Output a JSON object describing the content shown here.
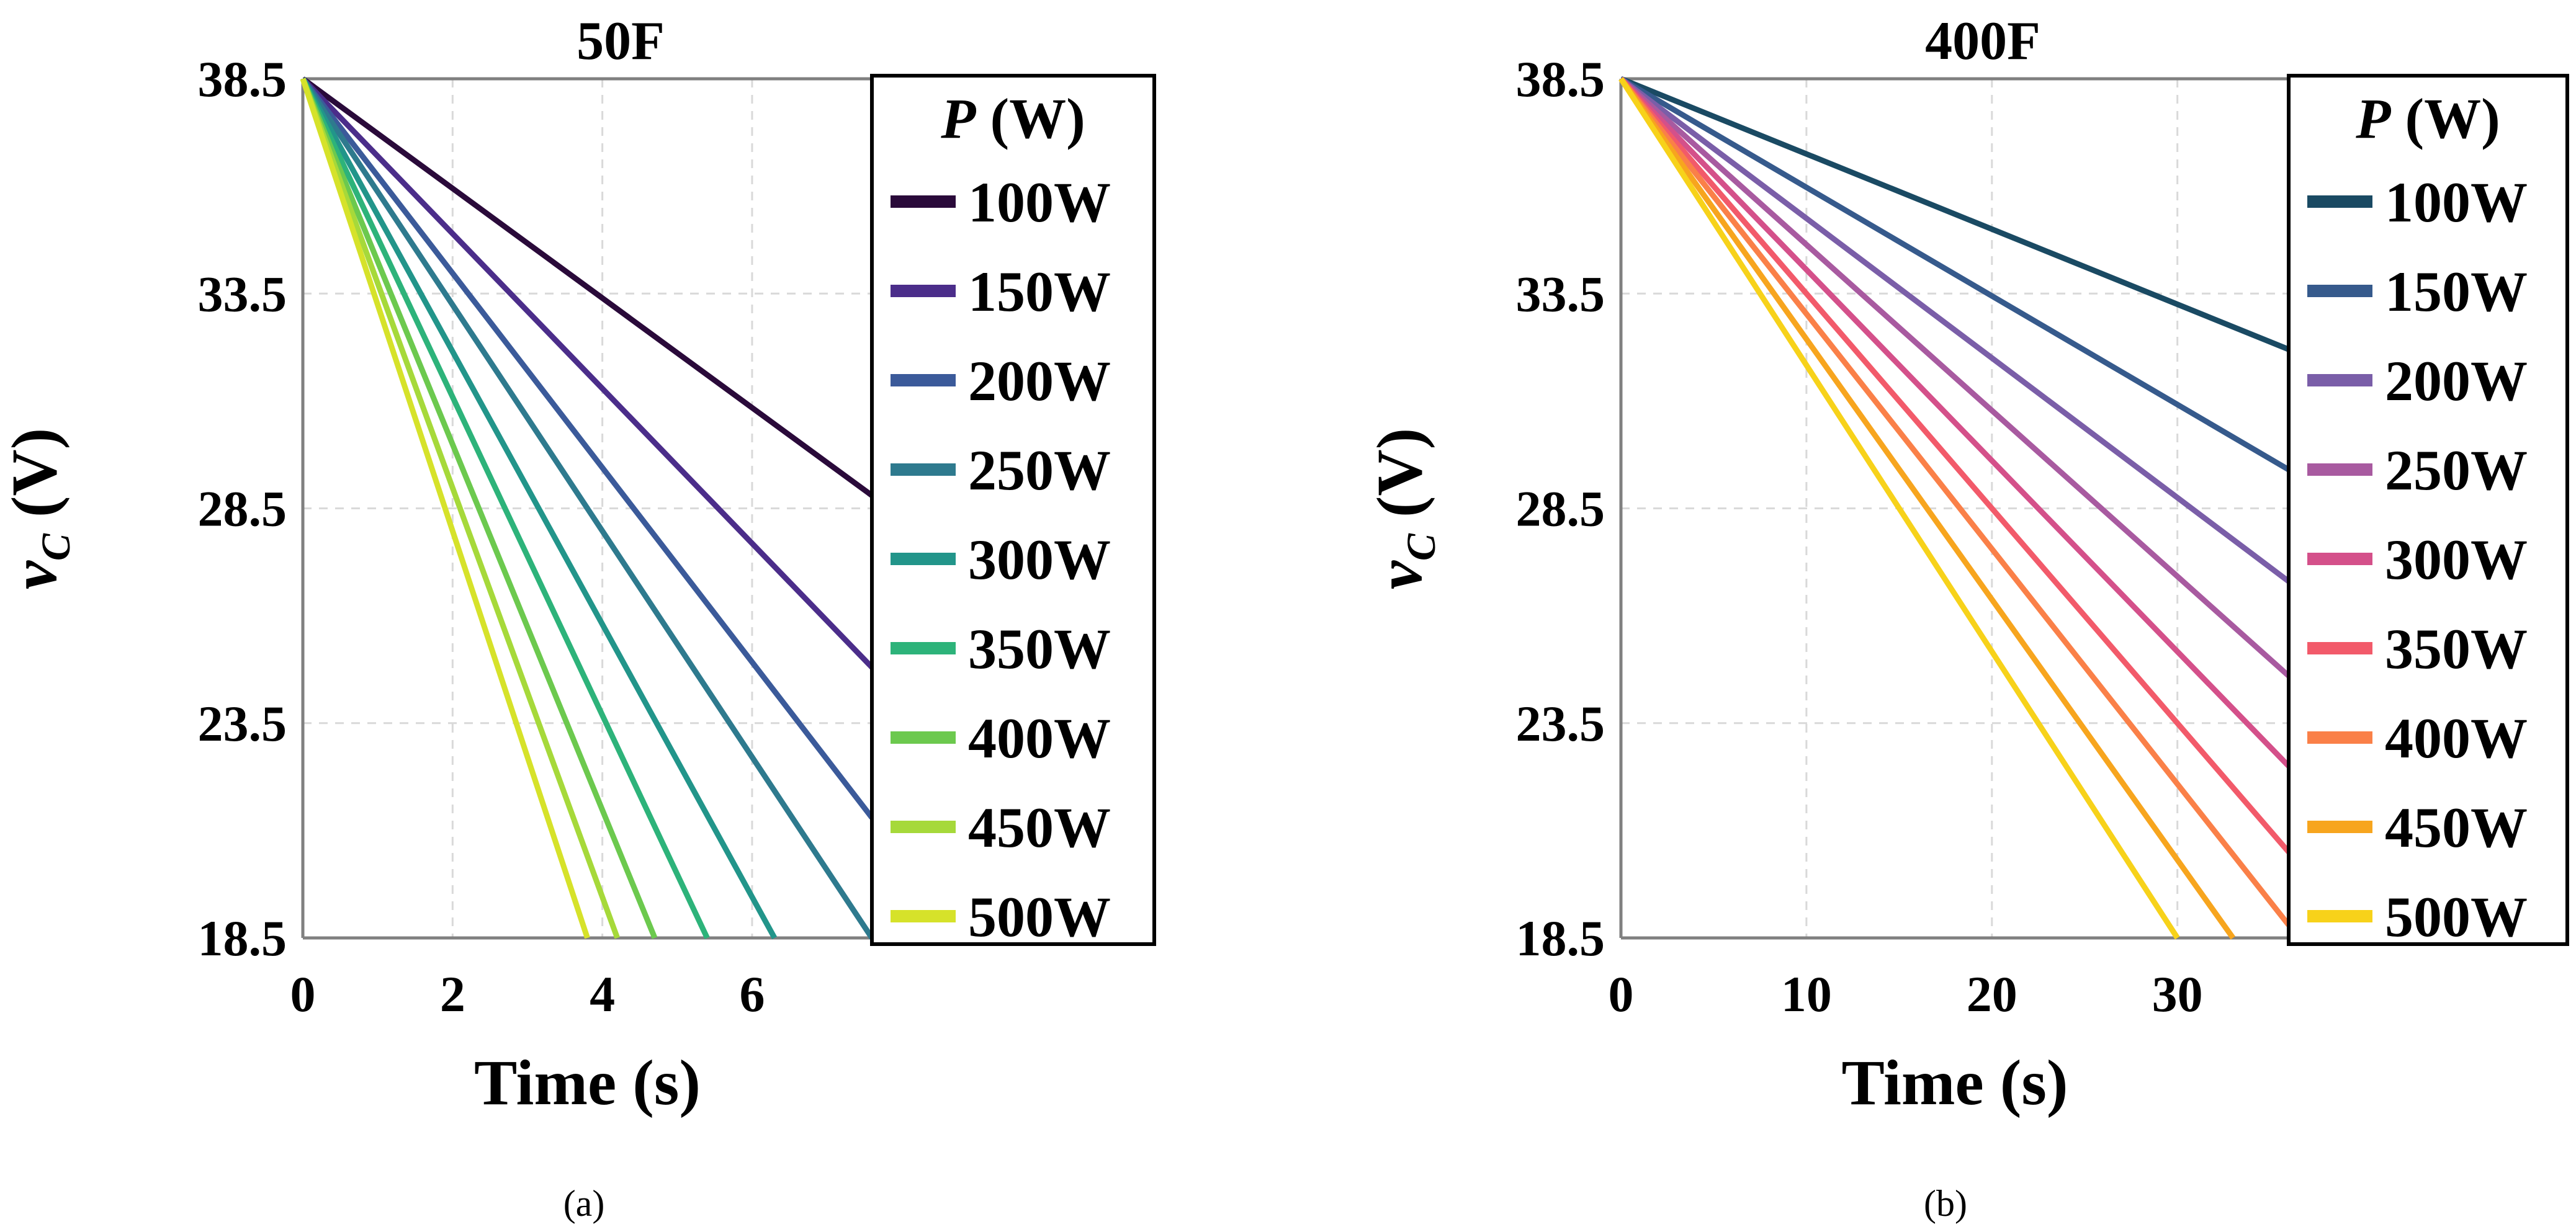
{
  "chart_data": [
    {
      "type": "line",
      "title": "50F",
      "capacitance_F": 50,
      "xlabel": "Time (s)",
      "ylabel_main": "v",
      "ylabel_sub": "C",
      "ylabel_unit": " (V)",
      "xlim": [
        0,
        7.6
      ],
      "ylim": [
        18.5,
        38.5
      ],
      "xticks": [
        0,
        2,
        4,
        6
      ],
      "yticks": [
        38.5,
        33.5,
        28.5,
        23.5,
        18.5
      ],
      "ytick_labels": [
        "38.5",
        "33.5",
        "28.5",
        "23.5",
        "18.5"
      ],
      "legend_title_var": "P",
      "legend_title_unit": " (W)",
      "legend_position": "right",
      "caption": "(a)",
      "series": [
        {
          "name": "100W",
          "power_W": 100,
          "color": "#2a0a3a",
          "x_end": 7.6,
          "y_end": 28.8
        },
        {
          "name": "150W",
          "power_W": 150,
          "color": "#4b2d8a",
          "x_end": 7.6,
          "y_end": 24.8
        },
        {
          "name": "200W",
          "power_W": 200,
          "color": "#3b5a9a",
          "x_end": 7.6,
          "y_end": 21.3
        },
        {
          "name": "250W",
          "power_W": 250,
          "color": "#2e7a8e",
          "x_end": 7.6,
          "y_end": 18.5
        },
        {
          "name": "300W",
          "power_W": 300,
          "color": "#22958a",
          "x_end": 6.3,
          "y_end": 18.5
        },
        {
          "name": "350W",
          "power_W": 350,
          "color": "#2db37a",
          "x_end": 5.4,
          "y_end": 18.5
        },
        {
          "name": "400W",
          "power_W": 400,
          "color": "#6cc94e",
          "x_end": 4.7,
          "y_end": 18.5
        },
        {
          "name": "450W",
          "power_W": 450,
          "color": "#a6d93a",
          "x_end": 4.2,
          "y_end": 18.5
        },
        {
          "name": "500W",
          "power_W": 500,
          "color": "#d6e22a",
          "x_end": 3.8,
          "y_end": 18.5
        }
      ]
    },
    {
      "type": "line",
      "title": "400F",
      "capacitance_F": 400,
      "xlabel": "Time (s)",
      "ylabel_main": "v",
      "ylabel_sub": "C",
      "ylabel_unit": " (V)",
      "xlim": [
        0,
        36
      ],
      "ylim": [
        18.5,
        38.5
      ],
      "xticks": [
        0,
        10,
        20,
        30
      ],
      "yticks": [
        38.5,
        33.5,
        28.5,
        23.5,
        18.5
      ],
      "ytick_labels": [
        "38.5",
        "33.5",
        "28.5",
        "23.5",
        "18.5"
      ],
      "legend_title_var": "P",
      "legend_title_unit": " (W)",
      "legend_position": "right",
      "caption": "(b)",
      "series": [
        {
          "name": "100W",
          "power_W": 100,
          "color": "#1a4a63",
          "x_end": 36,
          "y_end": 32.2
        },
        {
          "name": "150W",
          "power_W": 150,
          "color": "#365a8c",
          "x_end": 36,
          "y_end": 29.4
        },
        {
          "name": "200W",
          "power_W": 200,
          "color": "#7a5ea8",
          "x_end": 36,
          "y_end": 26.8
        },
        {
          "name": "250W",
          "power_W": 250,
          "color": "#a85aa0",
          "x_end": 36,
          "y_end": 24.6
        },
        {
          "name": "300W",
          "power_W": 300,
          "color": "#d4508a",
          "x_end": 36,
          "y_end": 22.5
        },
        {
          "name": "350W",
          "power_W": 350,
          "color": "#f25a6a",
          "x_end": 36,
          "y_end": 20.5
        },
        {
          "name": "400W",
          "power_W": 400,
          "color": "#fa8048",
          "x_end": 36,
          "y_end": 18.8
        },
        {
          "name": "450W",
          "power_W": 450,
          "color": "#f7a51e",
          "x_end": 33,
          "y_end": 18.5
        },
        {
          "name": "500W",
          "power_W": 500,
          "color": "#f7d21a",
          "x_end": 30,
          "y_end": 18.5
        }
      ]
    }
  ]
}
